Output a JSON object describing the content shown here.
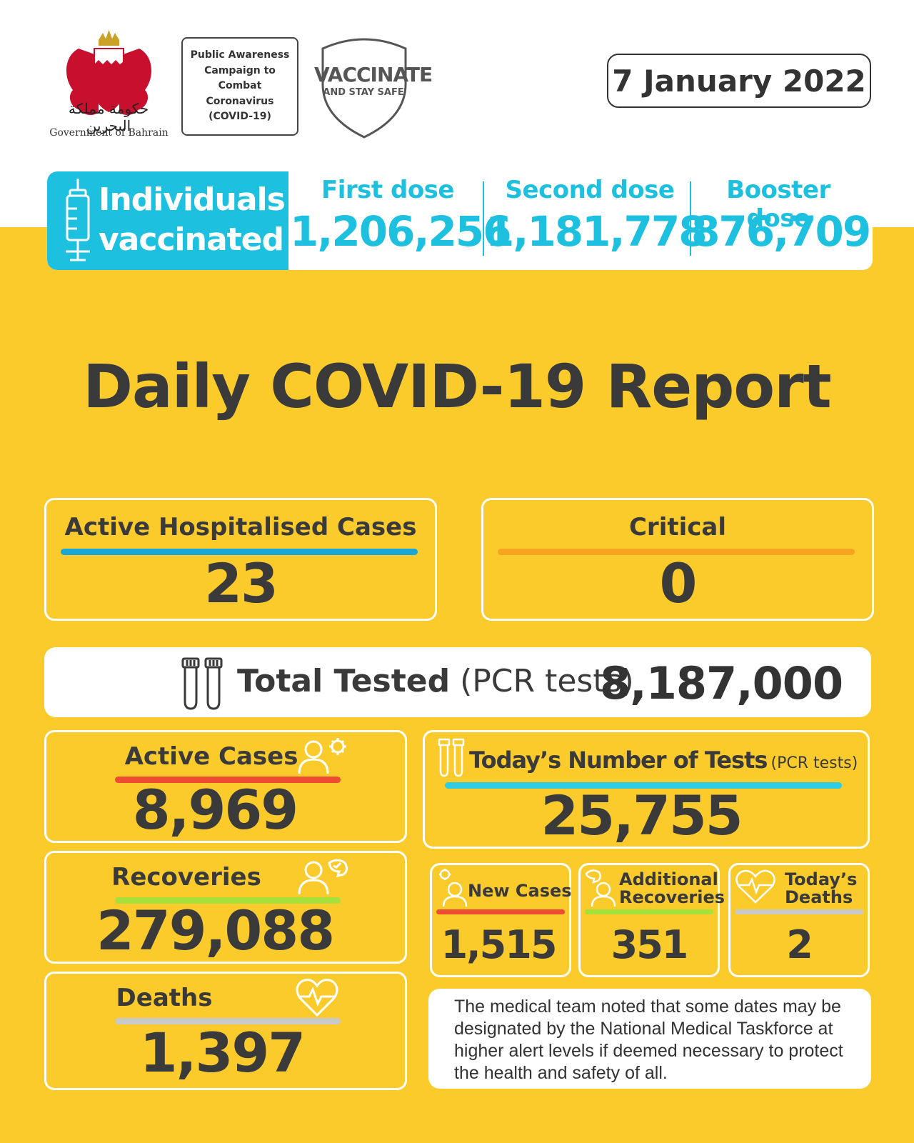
{
  "header": {
    "government_name": "Government of Bahrain",
    "government_name_arabic": "حكومة مملكة البحرين",
    "campaign_text": "Public Awareness Campaign to Combat Coronavirus (COVID-19)",
    "vaccinate_title": "VACCINATE",
    "vaccinate_subtitle": "AND STAY SAFE",
    "date": "7 January 2022"
  },
  "vaccination": {
    "label_line1": "Individuals",
    "label_line2": "vaccinated",
    "first_dose_label": "First dose",
    "first_dose_value": "1,206,256",
    "second_dose_label": "Second dose",
    "second_dose_value": "1,181,778",
    "booster_dose_label": "Booster dose",
    "booster_dose_value": "876,709"
  },
  "title": "Daily COVID-19 Report",
  "stats": {
    "active_hospitalised_label": "Active Hospitalised Cases",
    "active_hospitalised_value": "23",
    "critical_label": "Critical",
    "critical_value": "0",
    "total_tested_label": "Total Tested",
    "total_tested_sub": "(PCR tests)",
    "total_tested_value": "8,187,000",
    "active_cases_label": "Active Cases",
    "active_cases_value": "8,969",
    "todays_tests_label": "Today’s Number of Tests",
    "todays_tests_sub": "(PCR tests)",
    "todays_tests_value": "25,755",
    "recoveries_label": "Recoveries",
    "recoveries_value": "279,088",
    "new_cases_label": "New Cases",
    "new_cases_value": "1,515",
    "additional_recoveries_label_1": "Additional",
    "additional_recoveries_label_2": "Recoveries",
    "additional_recoveries_value": "351",
    "todays_deaths_label_1": "Today’s",
    "todays_deaths_label_2": "Deaths",
    "todays_deaths_value": "2",
    "deaths_label": "Deaths",
    "deaths_value": "1,397"
  },
  "note": "The medical team noted that some dates may be designated by the National Medical Taskforce at higher alert levels if deemed necessary to protect the health and safety of all.",
  "colors": {
    "background_yellow": "#fbcb2c",
    "cyan": "#1ec0df",
    "blue_bar": "#1aa7d8",
    "orange_bar": "#f7a521",
    "red_bar": "#ef4b32",
    "green_bar": "#a6e03a",
    "grey_bar": "#c9c9c9",
    "text_dark": "#3a3a3a"
  }
}
